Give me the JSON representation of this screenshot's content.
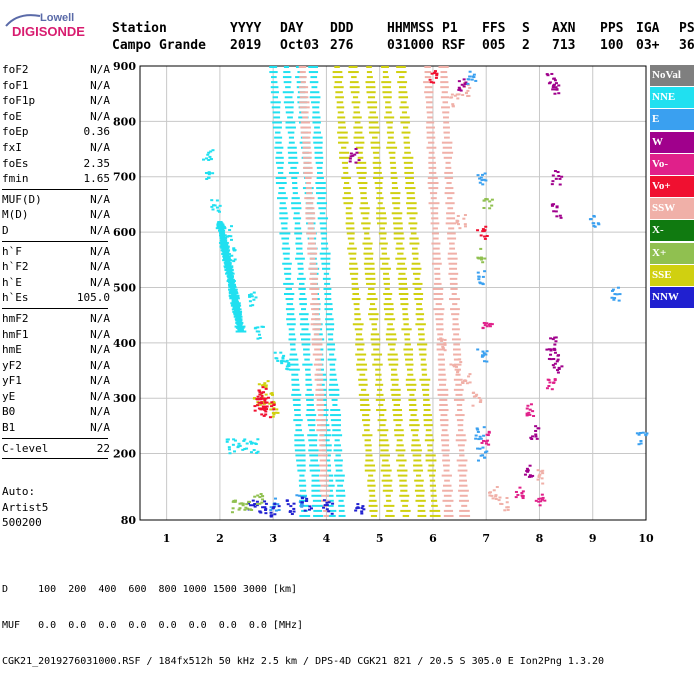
{
  "logo": {
    "line1": "Lowell",
    "line2": "DIGISONDE"
  },
  "header": {
    "station_label": "Station",
    "station_name": "Campo Grande",
    "cols": [
      {
        "label": "YYYY",
        "value": "2019"
      },
      {
        "label": "DAY",
        "value": "Oct03"
      },
      {
        "label": "DDD",
        "value": "276"
      },
      {
        "label": "HHMMSS",
        "value": "031000"
      },
      {
        "label": "P1",
        "value": "RSF"
      },
      {
        "label": "FFS",
        "value": "005"
      },
      {
        "label": "S",
        "value": "2"
      },
      {
        "label": "AXN",
        "value": "713"
      },
      {
        "label": "PPS",
        "value": "100"
      },
      {
        "label": "IGA",
        "value": "03+"
      },
      {
        "label": "PS",
        "value": "36"
      }
    ]
  },
  "params": {
    "group1": [
      {
        "name": "foF2",
        "value": "N/A"
      },
      {
        "name": "foF1",
        "value": "N/A"
      },
      {
        "name": "foF1p",
        "value": "N/A"
      },
      {
        "name": "foE",
        "value": "N/A"
      },
      {
        "name": "foEp",
        "value": "0.36"
      },
      {
        "name": "fxI",
        "value": "N/A"
      },
      {
        "name": "foEs",
        "value": "2.35"
      },
      {
        "name": "fmin",
        "value": "1.65"
      }
    ],
    "group2": [
      {
        "name": "MUF(D)",
        "value": "N/A"
      },
      {
        "name": "M(D)",
        "value": "N/A"
      },
      {
        "name": "D",
        "value": "N/A"
      }
    ],
    "group3": [
      {
        "name": "h`F",
        "value": "N/A"
      },
      {
        "name": "h`F2",
        "value": "N/A"
      },
      {
        "name": "h`E",
        "value": "N/A"
      },
      {
        "name": "h`Es",
        "value": "105.0"
      }
    ],
    "group4": [
      {
        "name": "hmF2",
        "value": "N/A"
      },
      {
        "name": "hmF1",
        "value": "N/A"
      },
      {
        "name": "hmE",
        "value": "N/A"
      },
      {
        "name": "yF2",
        "value": "N/A"
      },
      {
        "name": "yF1",
        "value": "N/A"
      },
      {
        "name": "yE",
        "value": "N/A"
      },
      {
        "name": "B0",
        "value": "N/A"
      },
      {
        "name": "B1",
        "value": "N/A"
      }
    ],
    "group5": [
      {
        "name": "C-level",
        "value": "22"
      }
    ]
  },
  "autoscaling": {
    "line1": "Auto:",
    "line2": "Artist5",
    "line3": "500200"
  },
  "legend": [
    {
      "label": "NoVal",
      "color": "#7f7f7f"
    },
    {
      "label": "NNE",
      "color": "#20e0f0"
    },
    {
      "label": "E",
      "color": "#3aa0f0"
    },
    {
      "label": "W",
      "color": "#a0008c"
    },
    {
      "label": "Vo-",
      "color": "#e0208a"
    },
    {
      "label": "Vo+",
      "color": "#f01030"
    },
    {
      "label": "SSW",
      "color": "#f0b0a8"
    },
    {
      "label": "X-",
      "color": "#107a10"
    },
    {
      "label": "X+",
      "color": "#90c050"
    },
    {
      "label": "SSE",
      "color": "#d0d010"
    },
    {
      "label": "NNW",
      "color": "#2020d0"
    }
  ],
  "footer": {
    "line1": "D     100  200  400  600  800 1000 1500 3000 [km]",
    "line2": "MUF   0.0  0.0  0.0  0.0  0.0  0.0  0.0  0.0 [MHz]",
    "line3": "CGK21_2019276031000.RSF / 184fx512h 50 kHz 2.5 km / DPS-4D CGK21 821 / 20.5 S 305.0 E Ion2Png 1.3.20"
  },
  "chart_data": {
    "type": "scatter",
    "title": "",
    "xlabel": "",
    "ylabel": "",
    "xlim": [
      0.5,
      10
    ],
    "ylim": [
      80,
      900
    ],
    "x_ticks": [
      "1",
      "2",
      "3",
      "4",
      "5",
      "6",
      "7",
      "8",
      "9",
      "10"
    ],
    "y_ticks": [
      "80",
      "200",
      "300",
      "400",
      "500",
      "600",
      "700",
      "800",
      "900"
    ],
    "grid": true,
    "legend_position": "right",
    "series": [
      {
        "name": "NNE",
        "color": "#20e0f0",
        "traces": [
          [
            3.0,
            900,
            3.6,
            80
          ],
          [
            3.25,
            900,
            3.85,
            80
          ],
          [
            3.5,
            900,
            4.1,
            80
          ],
          [
            3.75,
            900,
            4.3,
            80
          ],
          [
            2.0,
            620,
            2.4,
            420
          ]
        ],
        "points": [
          [
            2.2,
            215
          ],
          [
            2.4,
            215
          ],
          [
            2.6,
            215
          ],
          [
            1.75,
            740
          ],
          [
            1.8,
            700
          ],
          [
            1.9,
            650
          ],
          [
            2.1,
            600
          ],
          [
            2.2,
            560
          ],
          [
            2.6,
            480
          ],
          [
            2.7,
            420
          ],
          [
            3.1,
            380
          ],
          [
            3.2,
            360
          ]
        ]
      },
      {
        "name": "SSE",
        "color": "#d0d010",
        "traces": [
          [
            4.2,
            900,
            4.9,
            80
          ],
          [
            4.5,
            900,
            5.2,
            80
          ],
          [
            4.8,
            900,
            5.5,
            80
          ],
          [
            5.1,
            900,
            5.8,
            80
          ],
          [
            5.4,
            900,
            6.05,
            80
          ]
        ],
        "points": [
          [
            2.9,
            300
          ],
          [
            2.8,
            320
          ],
          [
            3.0,
            280
          ],
          [
            2.7,
            290
          ]
        ]
      },
      {
        "name": "SSW",
        "color": "#f0b0a8",
        "traces": [
          [
            5.9,
            900,
            6.3,
            80
          ],
          [
            6.2,
            900,
            6.6,
            80
          ],
          [
            3.55,
            900,
            4.0,
            80
          ]
        ],
        "points": [
          [
            6.4,
            360
          ],
          [
            6.6,
            340
          ],
          [
            6.5,
            620
          ],
          [
            6.6,
            860
          ],
          [
            6.4,
            840
          ],
          [
            7.1,
            130
          ],
          [
            7.3,
            110
          ],
          [
            8.0,
            160
          ],
          [
            6.8,
            300
          ],
          [
            6.2,
            400
          ]
        ]
      },
      {
        "name": "Vo+",
        "color": "#f01030",
        "traces": [],
        "points": [
          [
            2.7,
            290
          ],
          [
            2.8,
            300
          ],
          [
            2.9,
            285
          ],
          [
            2.75,
            310
          ],
          [
            2.85,
            275
          ],
          [
            6.9,
            600
          ],
          [
            6.0,
            880
          ]
        ]
      },
      {
        "name": "W",
        "color": "#a0008c",
        "traces": [],
        "points": [
          [
            8.2,
            880
          ],
          [
            8.25,
            860
          ],
          [
            8.3,
            700
          ],
          [
            8.3,
            640
          ],
          [
            8.2,
            400
          ],
          [
            8.25,
            380
          ],
          [
            8.3,
            360
          ],
          [
            7.8,
            170
          ],
          [
            7.9,
            240
          ],
          [
            6.5,
            870
          ],
          [
            4.5,
            740
          ]
        ]
      },
      {
        "name": "E",
        "color": "#3aa0f0",
        "traces": [],
        "points": [
          [
            6.7,
            880
          ],
          [
            6.9,
            700
          ],
          [
            6.9,
            520
          ],
          [
            6.9,
            380
          ],
          [
            6.9,
            200
          ],
          [
            6.85,
            240
          ],
          [
            9.0,
            620
          ],
          [
            9.4,
            490
          ],
          [
            9.9,
            230
          ],
          [
            3.0,
            110
          ],
          [
            3.5,
            115
          ]
        ]
      },
      {
        "name": "NNW",
        "color": "#2020d0",
        "traces": [],
        "points": [
          [
            2.6,
            110
          ],
          [
            2.8,
            105
          ],
          [
            3.0,
            100
          ],
          [
            3.3,
            105
          ],
          [
            3.6,
            110
          ],
          [
            4.0,
            105
          ],
          [
            4.6,
            105
          ]
        ]
      },
      {
        "name": "X+",
        "color": "#90c050",
        "traces": [],
        "points": [
          [
            2.3,
            105
          ],
          [
            2.5,
            110
          ],
          [
            2.7,
            120
          ],
          [
            6.9,
            560
          ],
          [
            7.0,
            650
          ]
        ]
      },
      {
        "name": "Vo-",
        "color": "#e0208a",
        "traces": [],
        "points": [
          [
            7.0,
            430
          ],
          [
            7.6,
            130
          ],
          [
            7.8,
            280
          ],
          [
            8.0,
            120
          ],
          [
            8.2,
            330
          ],
          [
            6.95,
            230
          ]
        ]
      }
    ]
  }
}
